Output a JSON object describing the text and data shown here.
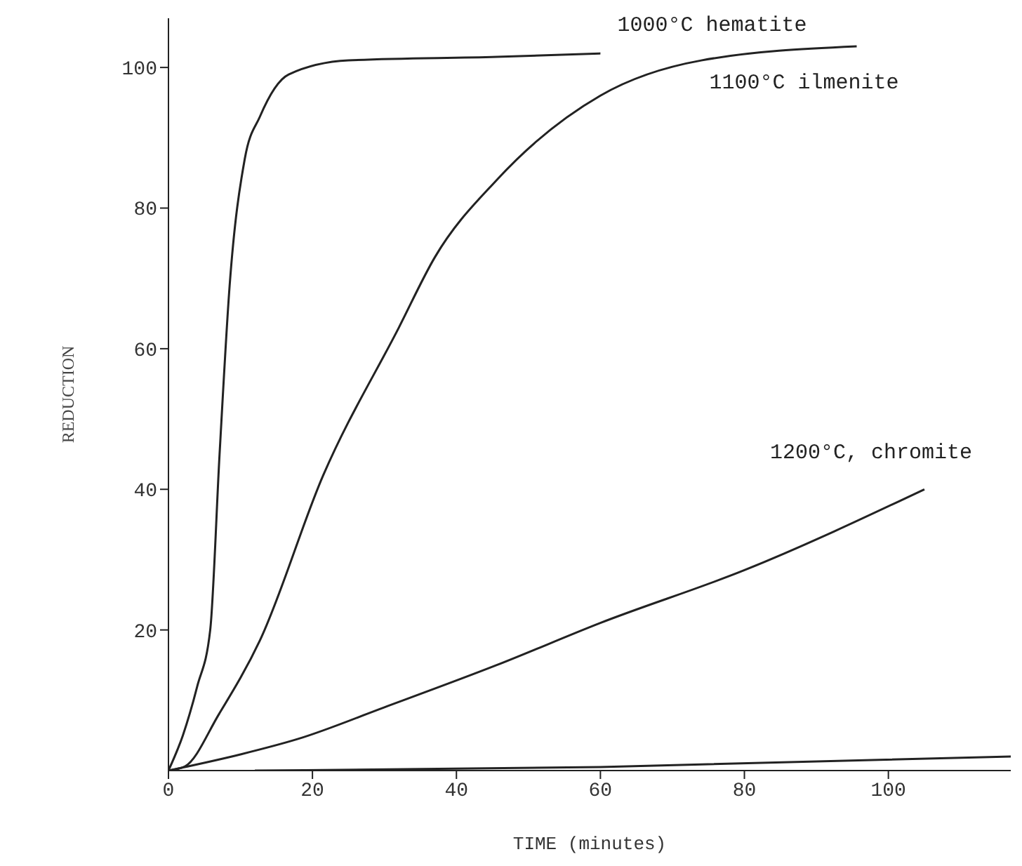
{
  "chart_data": {
    "type": "line",
    "xlabel": "TIME (minutes)",
    "ylabel": "REDUCTION",
    "xlim": [
      0,
      117
    ],
    "xticks": [
      0,
      20,
      40,
      60,
      80,
      100
    ],
    "ylim": [
      0,
      107
    ],
    "yticks": [
      20,
      40,
      60,
      80,
      100
    ],
    "grid": false,
    "legend": false,
    "marker": "none",
    "line_style": "solid",
    "series": [
      {
        "name": "1000°C hematite",
        "color": "#222222",
        "x": [
          0,
          2,
          4,
          5.8,
          7.1,
          8.5,
          10.6,
          12.7,
          16.7,
          25,
          45.6,
          60
        ],
        "values": [
          0,
          5,
          12,
          20,
          45,
          69,
          87,
          93,
          99,
          101,
          101.5,
          102
        ]
      },
      {
        "name": "1100°C ilmenite",
        "color": "#222222",
        "x": [
          0,
          2.3,
          7,
          12.7,
          21.5,
          32,
          37,
          45.6,
          60,
          74,
          95.6
        ],
        "values": [
          0,
          0.6,
          8,
          18.5,
          42,
          63,
          73,
          84,
          96,
          101,
          103
        ]
      },
      {
        "name": "1200°C, chromite",
        "color": "#222222",
        "x": [
          0,
          10,
          18,
          30,
          45.6,
          60,
          80,
          105
        ],
        "values": [
          0,
          2.3,
          4.5,
          9,
          15,
          21,
          28.5,
          40
        ]
      },
      {
        "color": "#222222",
        "x": [
          12,
          60,
          117
        ],
        "values": [
          0,
          0.5,
          2
        ]
      }
    ]
  }
}
